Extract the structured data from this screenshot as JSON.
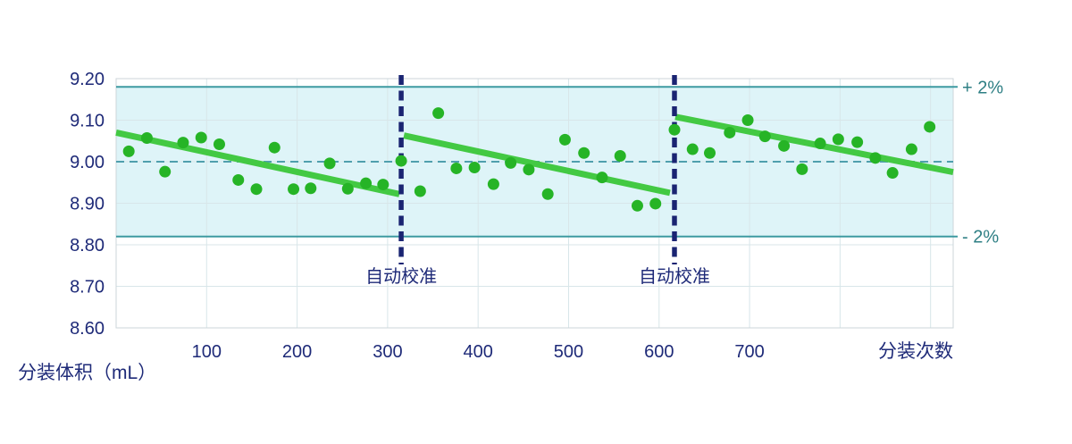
{
  "chart_data": {
    "type": "scatter",
    "title": "",
    "xlabel": "分装次数",
    "ylabel": "分装体积（mL）",
    "xlim": [
      0,
      925
    ],
    "ylim": [
      8.6,
      9.2
    ],
    "x_ticks": [
      100,
      200,
      300,
      400,
      500,
      600,
      700
    ],
    "x_gridlines": [
      100,
      200,
      300,
      400,
      500,
      600,
      700,
      800,
      900
    ],
    "y_ticks": [
      9.2,
      9.1,
      9.0,
      8.9,
      8.8,
      8.7,
      8.6
    ],
    "grid": true,
    "legend": "none",
    "target_line": {
      "value": 9.0,
      "style": "dashed"
    },
    "upper_limit": {
      "value": 9.18,
      "label": "+ 2%"
    },
    "lower_limit": {
      "value": 8.82,
      "label": "- 2%"
    },
    "tolerance_band": {
      "from": 8.82,
      "to": 9.18
    },
    "calibrations": [
      {
        "x": 315,
        "label": "自动校准"
      },
      {
        "x": 617,
        "label": "自动校准"
      }
    ],
    "trend_segments": [
      {
        "x1": 0,
        "v1": 9.07,
        "x2": 313,
        "v2": 8.922
      },
      {
        "x1": 318,
        "v1": 9.063,
        "x2": 612,
        "v2": 8.925
      },
      {
        "x1": 618,
        "v1": 9.108,
        "x2": 925,
        "v2": 8.975
      }
    ],
    "points": [
      [
        14,
        9.025
      ],
      [
        34,
        9.057
      ],
      [
        54,
        8.976
      ],
      [
        74,
        9.046
      ],
      [
        94,
        9.058
      ],
      [
        114,
        9.042
      ],
      [
        135,
        8.956
      ],
      [
        155,
        8.934
      ],
      [
        175,
        9.034
      ],
      [
        196,
        8.934
      ],
      [
        215,
        8.936
      ],
      [
        236,
        8.996
      ],
      [
        256,
        8.935
      ],
      [
        276,
        8.948
      ],
      [
        295,
        8.945
      ],
      [
        315,
        9.002
      ],
      [
        336,
        8.929
      ],
      [
        356,
        9.117
      ],
      [
        376,
        8.984
      ],
      [
        396,
        8.986
      ],
      [
        417,
        8.946
      ],
      [
        436,
        8.997
      ],
      [
        456,
        8.981
      ],
      [
        477,
        8.922
      ],
      [
        496,
        9.053
      ],
      [
        517,
        9.021
      ],
      [
        537,
        8.962
      ],
      [
        557,
        9.014
      ],
      [
        576,
        8.894
      ],
      [
        596,
        8.899
      ],
      [
        617,
        9.077
      ],
      [
        637,
        9.03
      ],
      [
        656,
        9.021
      ],
      [
        678,
        9.07
      ],
      [
        698,
        9.1
      ],
      [
        717,
        9.061
      ],
      [
        738,
        9.038
      ],
      [
        758,
        8.982
      ],
      [
        778,
        9.044
      ],
      [
        798,
        9.054
      ],
      [
        819,
        9.047
      ],
      [
        839,
        9.009
      ],
      [
        858,
        8.973
      ],
      [
        879,
        9.03
      ],
      [
        899,
        9.084
      ]
    ],
    "colors": {
      "axis_text": "#1e2a78",
      "calibration_line": "#1a2472",
      "band_fill": "#def4f8",
      "limit_line": "#3d9aa1",
      "limit_label": "#2e7f84",
      "target_dash": "#4f9fad",
      "gridline": "#d8e6e9",
      "plot_border": "#ccd6da",
      "trend_line": "#43c943",
      "point_fill": "#26b426",
      "background": "#ffffff"
    },
    "layout": {
      "plot_left": 130,
      "plot_top": 88,
      "plot_right": 1067,
      "plot_bottom": 367,
      "limit_line_overhang": 5,
      "calib_line_top": 84,
      "calib_line_bottom": 296,
      "calib_label_baseline": 316,
      "x_tick_baseline": 400,
      "xlabel_center_x": 1025,
      "xlabel_baseline": 400,
      "ylabel_left_x": 20,
      "ylabel_baseline": 424,
      "pct_label_x": 1077,
      "y_tick_right_x": 117
    }
  }
}
